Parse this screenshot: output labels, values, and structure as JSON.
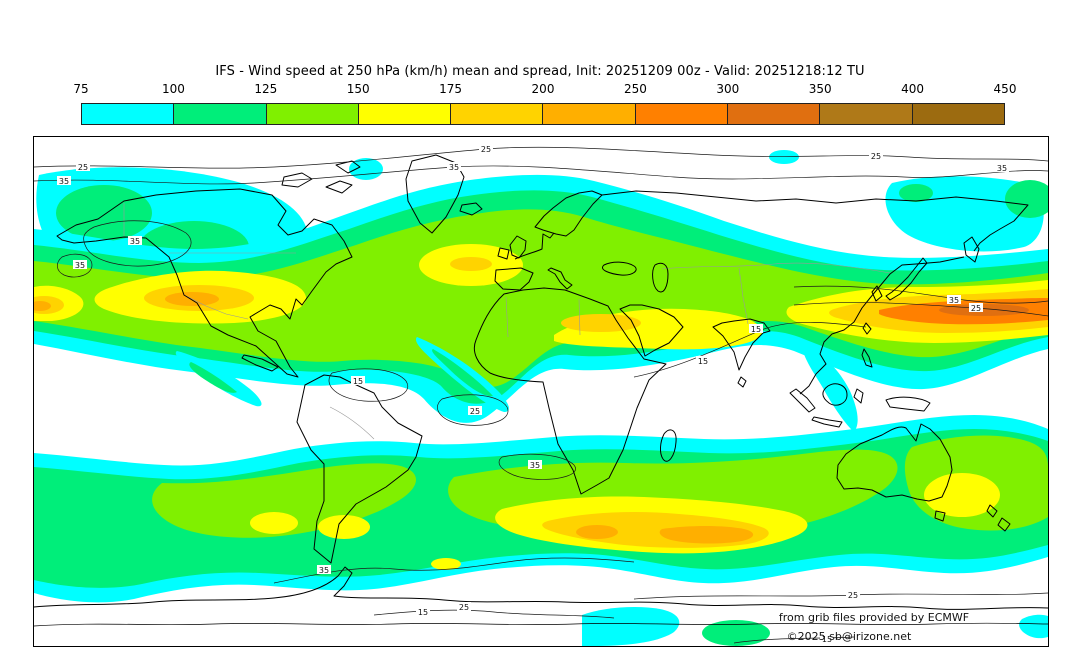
{
  "title": "IFS - Wind speed at 250 hPa (km/h) mean and spread, Init: 20251209 00z - Valid: 20251218:12 TU",
  "colorbar": {
    "ticks": [
      "75",
      "100",
      "125",
      "150",
      "175",
      "200",
      "250",
      "300",
      "350",
      "400",
      "450"
    ],
    "colors": [
      "#00FFFF",
      "#00EE7A",
      "#80F000",
      "#FFFF00",
      "#FFD300",
      "#FFAF00",
      "#FF8000",
      "#E06F10",
      "#AF7918",
      "#9C6B10"
    ]
  },
  "palette": {
    "cyan": "#00FFFF",
    "spring_green": "#00EE7A",
    "chartreuse": "#80F000",
    "yellow": "#FFFF00",
    "gold": "#FFD300",
    "amber": "#FFAF00",
    "orange": "#FF8000",
    "dark_orange": "#E06F10"
  },
  "map": {
    "spread_values": {
      "v15": "15",
      "v25": "25",
      "v35": "35"
    },
    "attribution_line1": "from grib files provided by ECMWF",
    "attribution_line2": "©2025 sb@irizone.net"
  },
  "chart_data": {
    "type": "heatmap",
    "title": "IFS - Wind speed at 250 hPa (km/h) mean and spread, Init: 20251209 00z - Valid: 20251218:12 TU",
    "field": "250 hPa wind speed ensemble mean (filled) and spread (contours)",
    "colorbar_tick_values": [
      75,
      100,
      125,
      150,
      175,
      200,
      250,
      300,
      350,
      400,
      450
    ],
    "colorbar_colors": [
      "#00FFFF",
      "#00EE7A",
      "#80F000",
      "#FFFF00",
      "#FFD300",
      "#FFAF00",
      "#FF8000",
      "#E06F10",
      "#AF7918",
      "#9C6B10"
    ],
    "spread_contour_levels_shown": [
      15,
      25,
      35
    ],
    "legend_position": "top",
    "projection": "equirectangular world map"
  }
}
